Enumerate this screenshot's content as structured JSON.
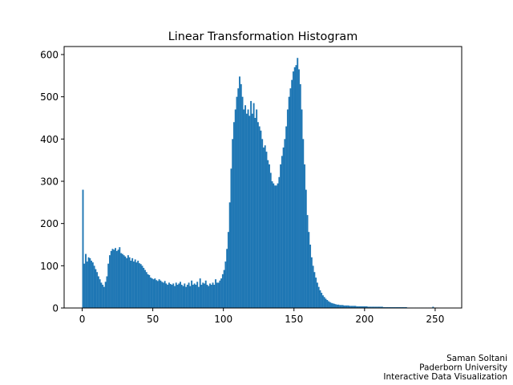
{
  "chart_data": {
    "type": "histogram",
    "title": "Linear Transformation Histogram",
    "color": "#1f77b4",
    "bins": [
      0,
      1,
      2,
      3,
      4,
      5,
      6,
      7,
      8,
      9,
      10,
      11,
      12,
      13,
      14,
      15,
      16,
      17,
      18,
      19,
      20,
      21,
      22,
      23,
      24,
      25,
      26,
      27,
      28,
      29,
      30,
      31,
      32,
      33,
      34,
      35,
      36,
      37,
      38,
      39,
      40,
      41,
      42,
      43,
      44,
      45,
      46,
      47,
      48,
      49,
      50,
      51,
      52,
      53,
      54,
      55,
      56,
      57,
      58,
      59,
      60,
      61,
      62,
      63,
      64,
      65,
      66,
      67,
      68,
      69,
      70,
      71,
      72,
      73,
      74,
      75,
      76,
      77,
      78,
      79,
      80,
      81,
      82,
      83,
      84,
      85,
      86,
      87,
      88,
      89,
      90,
      91,
      92,
      93,
      94,
      95,
      96,
      97,
      98,
      99,
      100,
      101,
      102,
      103,
      104,
      105,
      106,
      107,
      108,
      109,
      110,
      111,
      112,
      113,
      114,
      115,
      116,
      117,
      118,
      119,
      120,
      121,
      122,
      123,
      124,
      125,
      126,
      127,
      128,
      129,
      130,
      131,
      132,
      133,
      134,
      135,
      136,
      137,
      138,
      139,
      140,
      141,
      142,
      143,
      144,
      145,
      146,
      147,
      148,
      149,
      150,
      151,
      152,
      153,
      154,
      155,
      156,
      157,
      158,
      159,
      160,
      161,
      162,
      163,
      164,
      165,
      166,
      167,
      168,
      169,
      170,
      171,
      172,
      173,
      174,
      175,
      176,
      177,
      178,
      179,
      180,
      181,
      182,
      183,
      184,
      185,
      186,
      187,
      188,
      189,
      190,
      191,
      192,
      193,
      194,
      195,
      196,
      197,
      198,
      199,
      200,
      201,
      202,
      203,
      204,
      205,
      206,
      207,
      208,
      209,
      210,
      211,
      212,
      213,
      214,
      215,
      216,
      217,
      218,
      219,
      220,
      221,
      222,
      223,
      224,
      225,
      226,
      227,
      228,
      229,
      230,
      231,
      232,
      233,
      234,
      235,
      236,
      237,
      238,
      239,
      240,
      241,
      242,
      243,
      244,
      245,
      246,
      247,
      248,
      249,
      250,
      251,
      252,
      253,
      254,
      255,
      256
    ],
    "counts": [
      280,
      105,
      128,
      110,
      120,
      118,
      112,
      108,
      100,
      92,
      85,
      75,
      68,
      60,
      55,
      50,
      62,
      75,
      105,
      125,
      135,
      140,
      138,
      142,
      135,
      138,
      144,
      130,
      128,
      125,
      122,
      118,
      125,
      120,
      112,
      118,
      110,
      115,
      108,
      112,
      106,
      104,
      100,
      95,
      90,
      85,
      80,
      78,
      72,
      70,
      68,
      70,
      66,
      64,
      68,
      65,
      62,
      60,
      64,
      58,
      55,
      60,
      57,
      55,
      58,
      52,
      60,
      55,
      58,
      62,
      55,
      52,
      58,
      50,
      55,
      60,
      52,
      65,
      55,
      58,
      55,
      62,
      50,
      70,
      55,
      60,
      58,
      65,
      55,
      52,
      58,
      55,
      60,
      55,
      68,
      60,
      60,
      65,
      70,
      80,
      90,
      110,
      140,
      180,
      250,
      330,
      400,
      440,
      470,
      500,
      520,
      548,
      530,
      500,
      470,
      480,
      460,
      470,
      455,
      490,
      460,
      485,
      450,
      470,
      440,
      430,
      420,
      400,
      380,
      385,
      370,
      350,
      340,
      320,
      300,
      295,
      290,
      290,
      295,
      310,
      340,
      360,
      380,
      400,
      430,
      470,
      500,
      520,
      540,
      560,
      570,
      575,
      592,
      565,
      530,
      470,
      400,
      340,
      280,
      220,
      180,
      150,
      120,
      100,
      85,
      72,
      60,
      50,
      42,
      36,
      30,
      26,
      22,
      19,
      16,
      14,
      12,
      11,
      10,
      9,
      8,
      8,
      7,
      7,
      7,
      6,
      6,
      6,
      6,
      5,
      5,
      5,
      5,
      5,
      4,
      4,
      4,
      4,
      4,
      4,
      4,
      4,
      3,
      3,
      3,
      3,
      3,
      3,
      3,
      3,
      3,
      3,
      3,
      2,
      2,
      2,
      2,
      2,
      2,
      2,
      2,
      2,
      2,
      2,
      2,
      2,
      2,
      2,
      2,
      2,
      1,
      1,
      1,
      1,
      1,
      1,
      1,
      1,
      1,
      1,
      1,
      1,
      1,
      1,
      1,
      1,
      1,
      1,
      3,
      1,
      1,
      1,
      0,
      0,
      0,
      0
    ],
    "xlim": [
      -12.8,
      268.8
    ],
    "xticks": [
      0,
      50,
      100,
      150,
      200,
      250
    ],
    "ylim": [
      0,
      619
    ],
    "yticks": [
      0,
      100,
      200,
      300,
      400,
      500,
      600
    ],
    "annotations": [
      "Saman Soltani",
      "Paderborn University",
      "Interactive Data Visualization"
    ]
  }
}
